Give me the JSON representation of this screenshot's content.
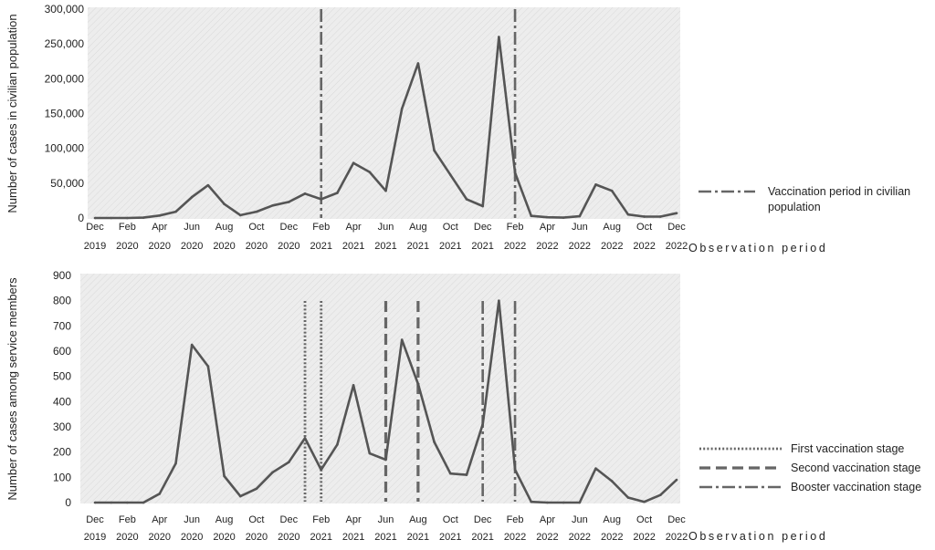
{
  "chart_data": [
    {
      "type": "line",
      "ylabel": "Number of cases in civilian population",
      "xlabel": "Observation period",
      "ylim": [
        0,
        300000
      ],
      "yticks": [
        "0",
        "50,000",
        "100,000",
        "150,000",
        "200,000",
        "250,000",
        "300,000"
      ],
      "xtick_labels": [
        [
          "Dec",
          "2019"
        ],
        [
          "Feb",
          "2020"
        ],
        [
          "Apr",
          "2020"
        ],
        [
          "Jun",
          "2020"
        ],
        [
          "Aug",
          "2020"
        ],
        [
          "Oct",
          "2020"
        ],
        [
          "Dec",
          "2020"
        ],
        [
          "Feb",
          "2021"
        ],
        [
          "Apr",
          "2021"
        ],
        [
          "Jun",
          "2021"
        ],
        [
          "Aug",
          "2021"
        ],
        [
          "Oct",
          "2021"
        ],
        [
          "Dec",
          "2021"
        ],
        [
          "Feb",
          "2022"
        ],
        [
          "Apr",
          "2022"
        ],
        [
          "Jun",
          "2022"
        ],
        [
          "Aug",
          "2022"
        ],
        [
          "Oct",
          "2022"
        ],
        [
          "Dec",
          "2022"
        ]
      ],
      "x_months": [
        "Dec 2019",
        "Jan 2020",
        "Feb 2020",
        "Mar 2020",
        "Apr 2020",
        "May 2020",
        "Jun 2020",
        "Jul 2020",
        "Aug 2020",
        "Sep 2020",
        "Oct 2020",
        "Nov 2020",
        "Dec 2020",
        "Jan 2021",
        "Feb 2021",
        "Mar 2021",
        "Apr 2021",
        "May 2021",
        "Jun 2021",
        "Jul 2021",
        "Aug 2021",
        "Sep 2021",
        "Oct 2021",
        "Nov 2021",
        "Dec 2021",
        "Jan 2022",
        "Feb 2022",
        "Mar 2022",
        "Apr 2022",
        "May 2022",
        "Jun 2022",
        "Jul 2022",
        "Aug 2022",
        "Sep 2022",
        "Oct 2022",
        "Nov 2022",
        "Dec 2022"
      ],
      "series": [
        {
          "values": [
            0,
            0,
            0,
            500,
            3500,
            9000,
            30000,
            47000,
            20000,
            4000,
            9000,
            18000,
            23000,
            35000,
            27000,
            36000,
            79000,
            66000,
            39000,
            157000,
            222000,
            97000,
            62000,
            27000,
            17000,
            260000,
            65000,
            3000,
            1000,
            500,
            2500,
            48000,
            39000,
            5000,
            2000,
            2000,
            7000
          ]
        }
      ],
      "markers": [
        {
          "label": "Vaccination period in civilian population",
          "style": "dash-dot",
          "months": [
            "Feb 2021",
            "Feb 2022"
          ]
        }
      ],
      "legend": {
        "position": "right",
        "entries": [
          {
            "label_lines": [
              "Vaccination period in civilian",
              "population"
            ],
            "style": "dash-dot"
          }
        ]
      }
    },
    {
      "type": "line",
      "ylabel": "Number of cases among service members",
      "xlabel": "Observation period",
      "ylim": [
        0,
        900
      ],
      "yticks": [
        "0",
        "100",
        "200",
        "300",
        "400",
        "500",
        "600",
        "700",
        "800",
        "900"
      ],
      "xtick_labels": [
        [
          "Dec",
          "2019"
        ],
        [
          "Feb",
          "2020"
        ],
        [
          "Apr",
          "2020"
        ],
        [
          "Jun",
          "2020"
        ],
        [
          "Aug",
          "2020"
        ],
        [
          "Oct",
          "2020"
        ],
        [
          "Dec",
          "2020"
        ],
        [
          "Feb",
          "2021"
        ],
        [
          "Apr",
          "2021"
        ],
        [
          "Jun",
          "2021"
        ],
        [
          "Aug",
          "2021"
        ],
        [
          "Oct",
          "2021"
        ],
        [
          "Dec",
          "2021"
        ],
        [
          "Feb",
          "2022"
        ],
        [
          "Apr",
          "2022"
        ],
        [
          "Jun",
          "2022"
        ],
        [
          "Aug",
          "2022"
        ],
        [
          "Oct",
          "2022"
        ],
        [
          "Dec",
          "2022"
        ]
      ],
      "x_months": [
        "Dec 2019",
        "Jan 2020",
        "Feb 2020",
        "Mar 2020",
        "Apr 2020",
        "May 2020",
        "Jun 2020",
        "Jul 2020",
        "Aug 2020",
        "Sep 2020",
        "Oct 2020",
        "Nov 2020",
        "Dec 2020",
        "Jan 2021",
        "Feb 2021",
        "Mar 2021",
        "Apr 2021",
        "May 2021",
        "Jun 2021",
        "Jul 2021",
        "Aug 2021",
        "Sep 2021",
        "Oct 2021",
        "Nov 2021",
        "Dec 2021",
        "Jan 2022",
        "Feb 2022",
        "Mar 2022",
        "Apr 2022",
        "May 2022",
        "Jun 2022",
        "Jul 2022",
        "Aug 2022",
        "Sep 2022",
        "Oct 2022",
        "Nov 2022",
        "Dec 2022"
      ],
      "series": [
        {
          "values": [
            0,
            0,
            0,
            0,
            35,
            155,
            625,
            540,
            105,
            25,
            55,
            120,
            160,
            255,
            130,
            230,
            465,
            195,
            170,
            645,
            470,
            240,
            115,
            110,
            310,
            800,
            130,
            3,
            0,
            0,
            0,
            135,
            85,
            20,
            3,
            30,
            90
          ]
        }
      ],
      "markers": [
        {
          "label": "First vaccination stage",
          "style": "dotted",
          "months": [
            "Jan 2021",
            "Feb 2021"
          ]
        },
        {
          "label": "Second vaccination stage",
          "style": "dashed",
          "months": [
            "Jun 2021",
            "Aug 2021"
          ]
        },
        {
          "label": "Booster vaccination stage",
          "style": "dash-dot",
          "months": [
            "Dec 2021",
            "Feb 2022"
          ]
        }
      ],
      "legend": {
        "position": "right",
        "entries": [
          {
            "label_lines": [
              "First vaccination stage"
            ],
            "style": "dotted"
          },
          {
            "label_lines": [
              "Second vaccination stage"
            ],
            "style": "dashed"
          },
          {
            "label_lines": [
              "Booster vaccination stage"
            ],
            "style": "dash-dot"
          }
        ]
      }
    }
  ],
  "colors": {
    "line": "#555555",
    "marker": "#666666",
    "plot_background": "#ececec",
    "text": "#222222"
  }
}
